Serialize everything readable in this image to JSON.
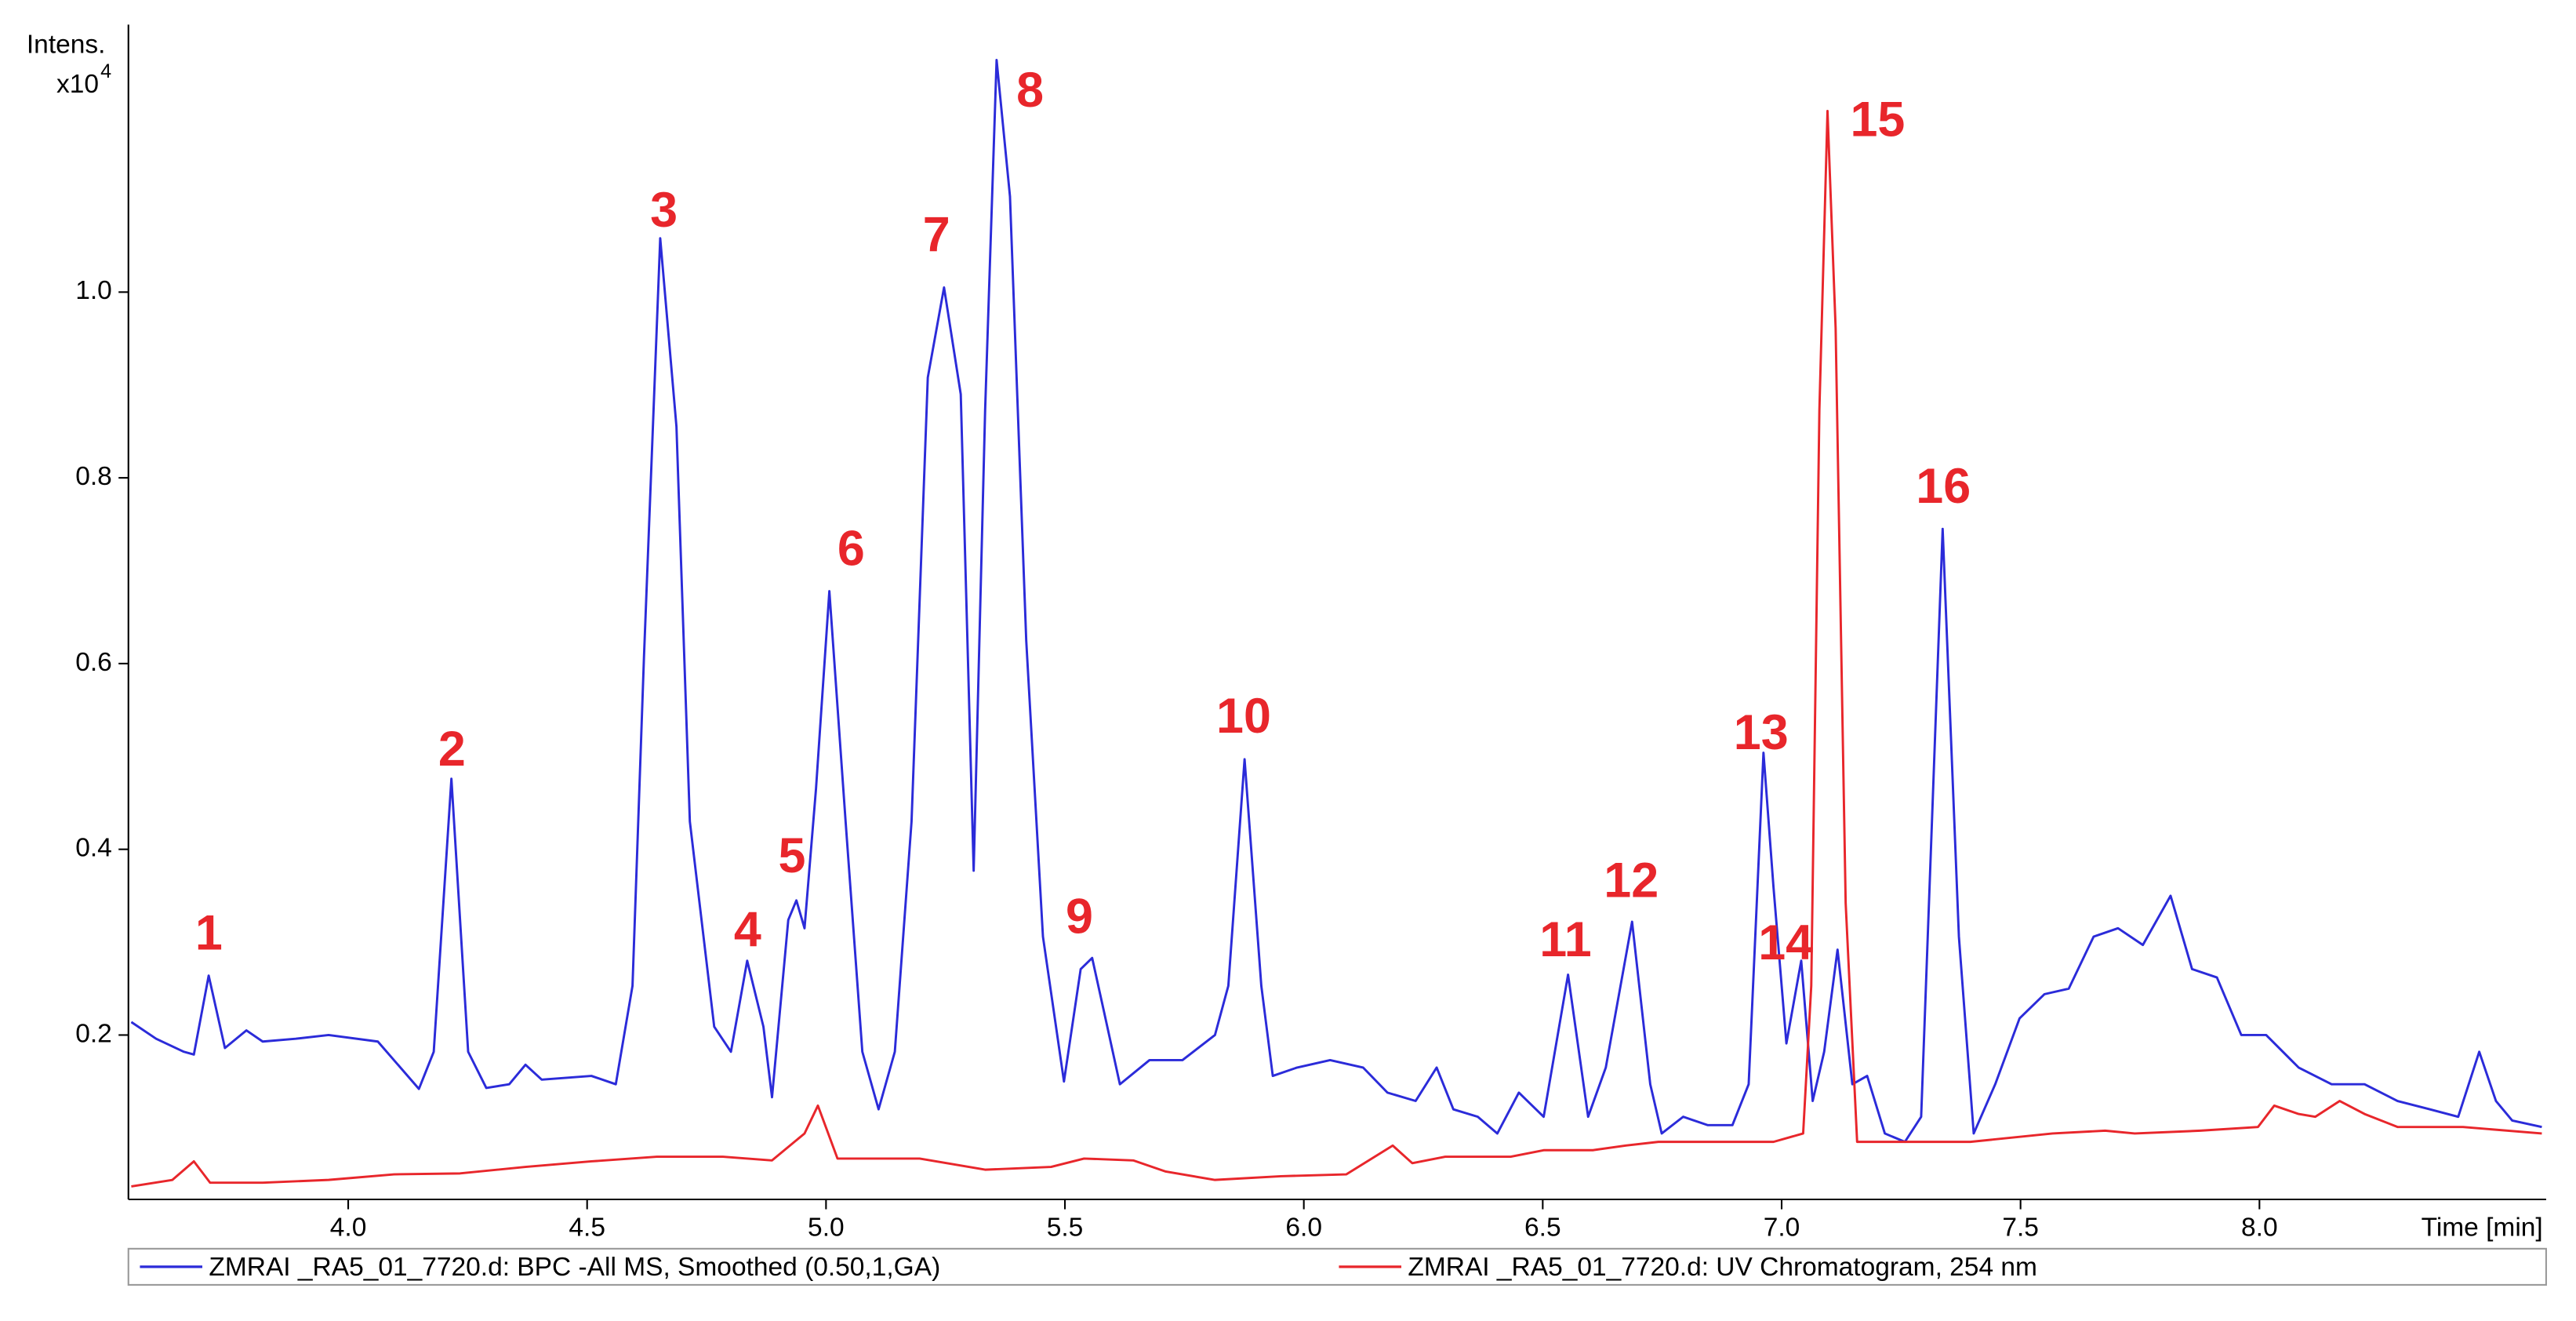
{
  "chart_data": {
    "type": "line",
    "y_label": "Intens.",
    "y_multiplier": "x10",
    "y_exponent": "4",
    "x_label": "Time [min]",
    "xlim": [
      3.54,
      8.6
    ],
    "ylim": [
      0.023,
      1.288
    ],
    "xticks": [
      {
        "value": 4,
        "label": "4.0"
      },
      4.5,
      {
        "value": 5,
        "label": "5.0"
      },
      5.5,
      {
        "value": 6,
        "label": "6.0"
      },
      6.5,
      {
        "value": 7,
        "label": "7.0"
      },
      7.5,
      {
        "value": 8,
        "label": "8.0"
      }
    ],
    "yticks": [
      0.2,
      0.4,
      0.6,
      0.8,
      {
        "value": 1,
        "label": "1.0"
      }
    ],
    "grid": false,
    "legend": "bottom",
    "annotations": [
      "1",
      "2",
      "3",
      "4",
      "5",
      "6",
      "7",
      "8",
      "9",
      "10",
      "11",
      "12",
      "13",
      "14",
      "15",
      "16"
    ],
    "series": [
      {
        "name": "ZMRAI _RA5_01_7720.d: BPC -All MS, Smoothed (0.50,1,GA)",
        "color": "#2b2bd9",
        "x": [
          3.546,
          3.598,
          3.656,
          3.677,
          3.708,
          3.742,
          3.787,
          3.821,
          3.89,
          3.959,
          4.062,
          4.148,
          4.179,
          4.216,
          4.251,
          4.289,
          4.337,
          4.371,
          4.405,
          4.509,
          4.56,
          4.595,
          4.619,
          4.653,
          4.687,
          4.715,
          4.766,
          4.801,
          4.835,
          4.869,
          4.887,
          4.921,
          4.938,
          4.955,
          4.979,
          5.007,
          5.041,
          5.076,
          5.11,
          5.144,
          5.179,
          5.213,
          5.247,
          5.282,
          5.309,
          5.333,
          5.357,
          5.385,
          5.419,
          5.454,
          5.498,
          5.533,
          5.557,
          5.581,
          5.615,
          5.677,
          5.746,
          5.814,
          5.842,
          5.876,
          5.911,
          5.935,
          5.986,
          6.055,
          6.124,
          6.175,
          6.234,
          6.278,
          6.313,
          6.364,
          6.405,
          6.45,
          6.502,
          6.553,
          6.595,
          6.632,
          6.687,
          6.725,
          6.749,
          6.794,
          6.845,
          6.897,
          6.931,
          6.962,
          6.983,
          7.01,
          7.041,
          7.065,
          7.089,
          7.117,
          7.148,
          7.179,
          7.216,
          7.258,
          7.292,
          7.337,
          7.371,
          7.402,
          7.447,
          7.498,
          7.55,
          7.601,
          7.653,
          7.704,
          7.756,
          7.814,
          7.859,
          7.911,
          7.962,
          8.014,
          8.082,
          8.151,
          8.22,
          8.289,
          8.357,
          8.416,
          8.46,
          8.495,
          8.529,
          8.591
        ],
        "values": [
          0.214,
          0.196,
          0.182,
          0.179,
          0.264,
          0.186,
          0.205,
          0.193,
          0.196,
          0.2,
          0.193,
          0.142,
          0.182,
          0.476,
          0.182,
          0.143,
          0.147,
          0.168,
          0.152,
          0.156,
          0.147,
          0.253,
          0.607,
          1.058,
          0.855,
          0.43,
          0.209,
          0.182,
          0.28,
          0.209,
          0.133,
          0.324,
          0.345,
          0.315,
          0.465,
          0.678,
          0.43,
          0.182,
          0.12,
          0.182,
          0.43,
          0.908,
          1.005,
          0.89,
          0.377,
          0.873,
          1.25,
          1.103,
          0.625,
          0.306,
          0.15,
          0.271,
          0.283,
          0.227,
          0.147,
          0.173,
          0.173,
          0.2,
          0.253,
          0.497,
          0.253,
          0.156,
          0.165,
          0.173,
          0.165,
          0.138,
          0.129,
          0.165,
          0.12,
          0.112,
          0.094,
          0.138,
          0.112,
          0.265,
          0.112,
          0.165,
          0.322,
          0.147,
          0.094,
          0.112,
          0.103,
          0.103,
          0.147,
          0.504,
          0.359,
          0.191,
          0.28,
          0.129,
          0.182,
          0.292,
          0.147,
          0.156,
          0.094,
          0.085,
          0.112,
          0.745,
          0.306,
          0.094,
          0.147,
          0.218,
          0.244,
          0.25,
          0.306,
          0.315,
          0.297,
          0.35,
          0.271,
          0.262,
          0.2,
          0.2,
          0.165,
          0.147,
          0.147,
          0.129,
          0.12,
          0.112,
          0.182,
          0.129,
          0.108,
          0.101
        ]
      },
      {
        "name": "ZMRAI _RA5_01_7720.d: UV Chromatogram, 254 nm",
        "color": "#e8262b",
        "x": [
          3.546,
          3.632,
          3.677,
          3.711,
          3.821,
          3.959,
          4.096,
          4.234,
          4.371,
          4.509,
          4.646,
          4.784,
          4.887,
          4.955,
          4.983,
          5.024,
          5.093,
          5.196,
          5.333,
          5.471,
          5.54,
          5.643,
          5.711,
          5.814,
          5.952,
          6.089,
          6.186,
          6.227,
          6.296,
          6.364,
          6.433,
          6.502,
          6.605,
          6.674,
          6.742,
          6.88,
          6.983,
          7.045,
          7.062,
          7.079,
          7.096,
          7.113,
          7.134,
          7.158,
          7.258,
          7.395,
          7.567,
          7.677,
          7.739,
          7.876,
          7.997,
          8.031,
          8.082,
          8.117,
          8.168,
          8.22,
          8.289,
          8.426,
          8.591
        ],
        "values": [
          0.037,
          0.044,
          0.064,
          0.041,
          0.041,
          0.044,
          0.05,
          0.051,
          0.058,
          0.064,
          0.069,
          0.069,
          0.065,
          0.094,
          0.124,
          0.067,
          0.067,
          0.067,
          0.055,
          0.058,
          0.067,
          0.065,
          0.053,
          0.044,
          0.048,
          0.05,
          0.081,
          0.062,
          0.069,
          0.069,
          0.069,
          0.076,
          0.076,
          0.081,
          0.085,
          0.085,
          0.085,
          0.094,
          0.253,
          0.873,
          1.195,
          0.961,
          0.342,
          0.085,
          0.085,
          0.085,
          0.094,
          0.097,
          0.094,
          0.097,
          0.101,
          0.124,
          0.115,
          0.112,
          0.129,
          0.115,
          0.101,
          0.101,
          0.094
        ]
      }
    ]
  }
}
